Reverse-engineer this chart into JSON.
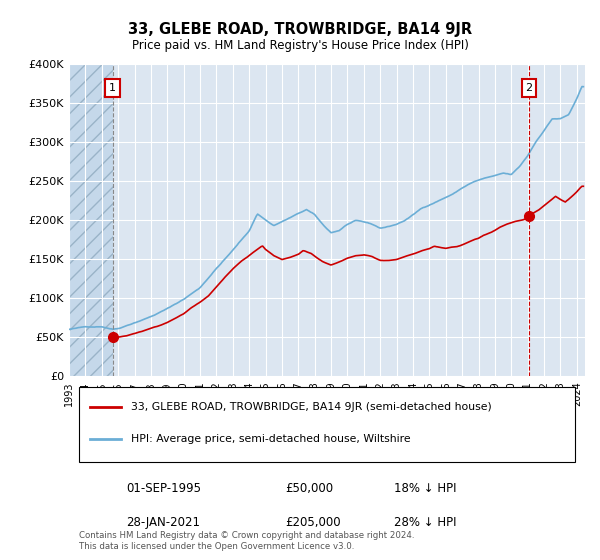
{
  "title": "33, GLEBE ROAD, TROWBRIDGE, BA14 9JR",
  "subtitle": "Price paid vs. HM Land Registry's House Price Index (HPI)",
  "ylim": [
    0,
    400000
  ],
  "yticks": [
    0,
    50000,
    100000,
    150000,
    200000,
    250000,
    300000,
    350000,
    400000
  ],
  "ytick_labels": [
    "£0",
    "£50K",
    "£100K",
    "£150K",
    "£200K",
    "£250K",
    "£300K",
    "£350K",
    "£400K"
  ],
  "hpi_color": "#6baed6",
  "price_color": "#cc0000",
  "bg_color": "#dce6f1",
  "grid_color": "#ffffff",
  "p1_x": 1995.67,
  "p1_y": 50000,
  "p2_x": 2021.08,
  "p2_y": 205000,
  "xlim_start": 1993.0,
  "xlim_end": 2024.5,
  "footnote": "Contains HM Land Registry data © Crown copyright and database right 2024.\nThis data is licensed under the Open Government Licence v3.0.",
  "legend_line1": "33, GLEBE ROAD, TROWBRIDGE, BA14 9JR (semi-detached house)",
  "legend_line2": "HPI: Average price, semi-detached house, Wiltshire"
}
